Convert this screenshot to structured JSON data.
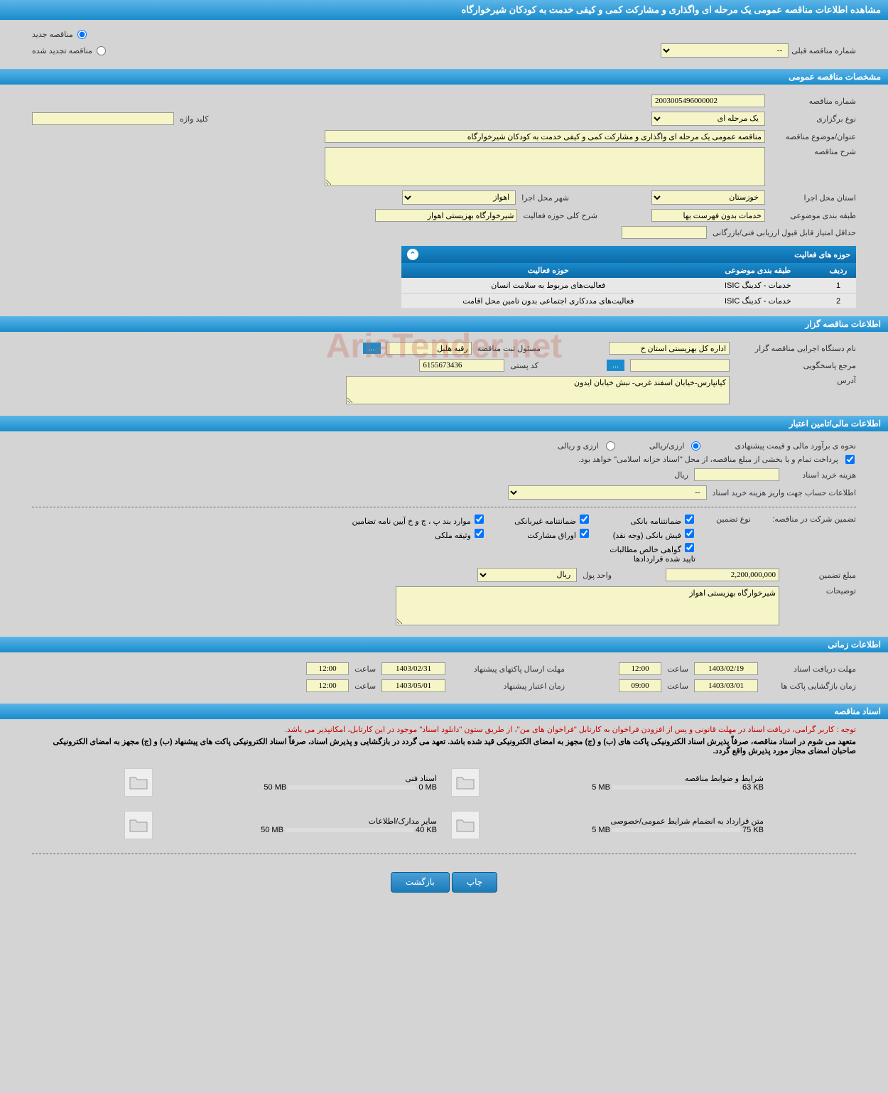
{
  "page_title": "مشاهده اطلاعات مناقصه عمومی یک مرحله ای واگذاری و مشارکت کمی و کیفی خدمت به کودکان شیرخوارگاه",
  "tender_type": {
    "new_label": "مناقصه جدید",
    "renewed_label": "مناقصه تجدید شده",
    "prev_number_label": "شماره مناقصه قبلی",
    "prev_number_value": "--"
  },
  "sections": {
    "general_spec": "مشخصات مناقصه عمومی",
    "tender_holder": "اطلاعات مناقصه گزار",
    "financial": "اطلاعات مالی/تامین اعتبار",
    "timing": "اطلاعات زمانی",
    "documents": "اسناد مناقصه"
  },
  "general": {
    "number_label": "شماره مناقصه",
    "number_value": "2003005496000002",
    "holding_type_label": "نوع برگزاری",
    "holding_type_value": "یک مرحله ای",
    "keyword_label": "کلید واژه",
    "keyword_value": "",
    "subject_label": "عنوان/موضوع مناقصه",
    "subject_value": "مناقصه عمومی یک مرحله ای واگذاری و مشارکت کمی و کیفی خدمت به کودکان شیرخوارگاه",
    "desc_label": "شرح مناقصه",
    "desc_value": "",
    "province_label": "استان محل اجرا",
    "province_value": "خوزستان",
    "city_label": "شهر محل اجرا",
    "city_value": "اهواز",
    "category_label": "طبقه بندی موضوعی",
    "category_value": "خدمات بدون فهرست بها",
    "scope_desc_label": "شرح کلی حوزه فعالیت",
    "scope_desc_value": "شیرخوارگاه بهزیستی اهواز",
    "min_score_label": "حداقل امتیاز قابل قبول ارزیابی فنی/بازرگانی",
    "min_score_value": ""
  },
  "activity_scope": {
    "title": "حوزه های فعالیت",
    "col_row": "ردیف",
    "col_category": "طبقه بندی موضوعی",
    "col_scope": "حوزه فعالیت",
    "rows": [
      {
        "n": "1",
        "cat": "خدمات - کدینگ ISIC",
        "scope": "فعالیت‌های مربوط به سلامت انسان"
      },
      {
        "n": "2",
        "cat": "خدمات - کدینگ ISIC",
        "scope": "فعالیت‌های مددکاری اجتماعی بدون تامین محل اقامت"
      }
    ]
  },
  "holder": {
    "org_label": "نام دستگاه اجرایی مناقصه گزار",
    "org_value": "اداره کل بهزیستی استان خ",
    "responsible_label": "مسئول ثبت مناقصه",
    "responsible_value": "رقیه هلیل",
    "responder_label": "مرجع پاسخگویی",
    "responder_value": "",
    "postal_label": "کد پستی",
    "postal_value": "6155673436",
    "address_label": "آدرس",
    "address_value": "کیانپارس-خیابان اسفند غربی- نبش خیابان ایدون",
    "more_btn": "..."
  },
  "financial": {
    "estimate_method_label": "نحوه ی برآورد مالی و قیمت پیشنهادی",
    "arzi_riyali": "ارزی/ریالی",
    "arzi_va_riyali": "ارزی و ریالی",
    "payment_note": "پرداخت تمام و یا بخشی از مبلغ مناقصه، از محل \"اسناد خزانه اسلامی\" خواهد بود.",
    "doc_cost_label": "هزینه خرید اسناد",
    "riyal": "ریال",
    "account_info_label": "اطلاعات حساب جهت واریز هزینه خرید اسناد",
    "account_info_value": "--",
    "guarantee_label": "تضمین شرکت در مناقصه:",
    "guarantee_type_label": "نوع تضمین",
    "chk_bank_guarantee": "ضمانتنامه بانکی",
    "chk_nonbank_guarantee": "ضمانتنامه غیربانکی",
    "chk_regulation_items": "موارد بند پ ، ج و خ آیین نامه تضامین",
    "chk_bank_receipt": "فیش بانکی (وجه نقد)",
    "chk_participation_bonds": "اوراق مشارکت",
    "chk_property_deed": "وثیقه ملکی",
    "chk_certified_claims": "گواهی خالص مطالبات تایید شده قراردادها",
    "amount_label": "مبلغ تضمین",
    "amount_value": "2,200,000,000",
    "currency_label": "واحد پول",
    "currency_value": "ریال",
    "notes_label": "توضیحات",
    "notes_value": "شیرخوارگاه بهزیستی اهواز"
  },
  "timing": {
    "doc_deadline_label": "مهلت دریافت اسناد",
    "doc_deadline_date": "1403/02/19",
    "doc_deadline_time": "12:00",
    "packet_deadline_label": "مهلت ارسال پاکتهای پیشنهاد",
    "packet_deadline_date": "1403/02/31",
    "packet_deadline_time": "12:00",
    "opening_label": "زمان بازگشایی پاکت ها",
    "opening_date": "1403/03/01",
    "opening_time": "09:00",
    "validity_label": "زمان اعتبار پیشنهاد",
    "validity_date": "1403/05/01",
    "validity_time": "12:00",
    "time_label": "ساعت"
  },
  "documents": {
    "red_note": "توجه : کاربر گرامی، دریافت اسناد در مهلت قانونی و پس از افزودن فراخوان به کارتابل \"فراخوان های من\"، از طریق ستون \"دانلود اسناد\" موجود در این کارتابل، امکانپذیر می باشد.",
    "commit_note": "متعهد می شوم در اسناد مناقصه، صرفاً پذیرش اسناد الکترونیکی پاکت های (ب) و (ج) مجهز به امضای الکترونیکی قید شده باشد. تعهد می گردد در بازگشایی و پذیرش اسناد، صرفاً اسناد الکترونیکی پاکت های پیشنهاد (ب) و (ج) مجهز به امضای الکترونیکی صاحبان امضای مجاز مورد پذیرش واقع گردد.",
    "items": [
      {
        "title": "شرایط و ضوابط مناقصه",
        "used": "63 KB",
        "total": "5 MB",
        "fill_pct": 2
      },
      {
        "title": "اسناد فنی",
        "used": "0 MB",
        "total": "50 MB",
        "fill_pct": 0
      },
      {
        "title": "متن قرارداد به انضمام شرایط عمومی/خصوصی",
        "used": "75 KB",
        "total": "5 MB",
        "fill_pct": 2
      },
      {
        "title": "سایر مدارک/اطلاعات",
        "used": "40 KB",
        "total": "50 MB",
        "fill_pct": 1
      }
    ]
  },
  "buttons": {
    "print": "چاپ",
    "back": "بازگشت"
  },
  "watermark": "AriaTender.net",
  "colors": {
    "header_gradient_top": "#5bb5e8",
    "header_gradient_bottom": "#1a8ccc",
    "input_bg": "#f5f5c8",
    "page_bg": "#d4d4d4",
    "red": "#cc0000"
  }
}
